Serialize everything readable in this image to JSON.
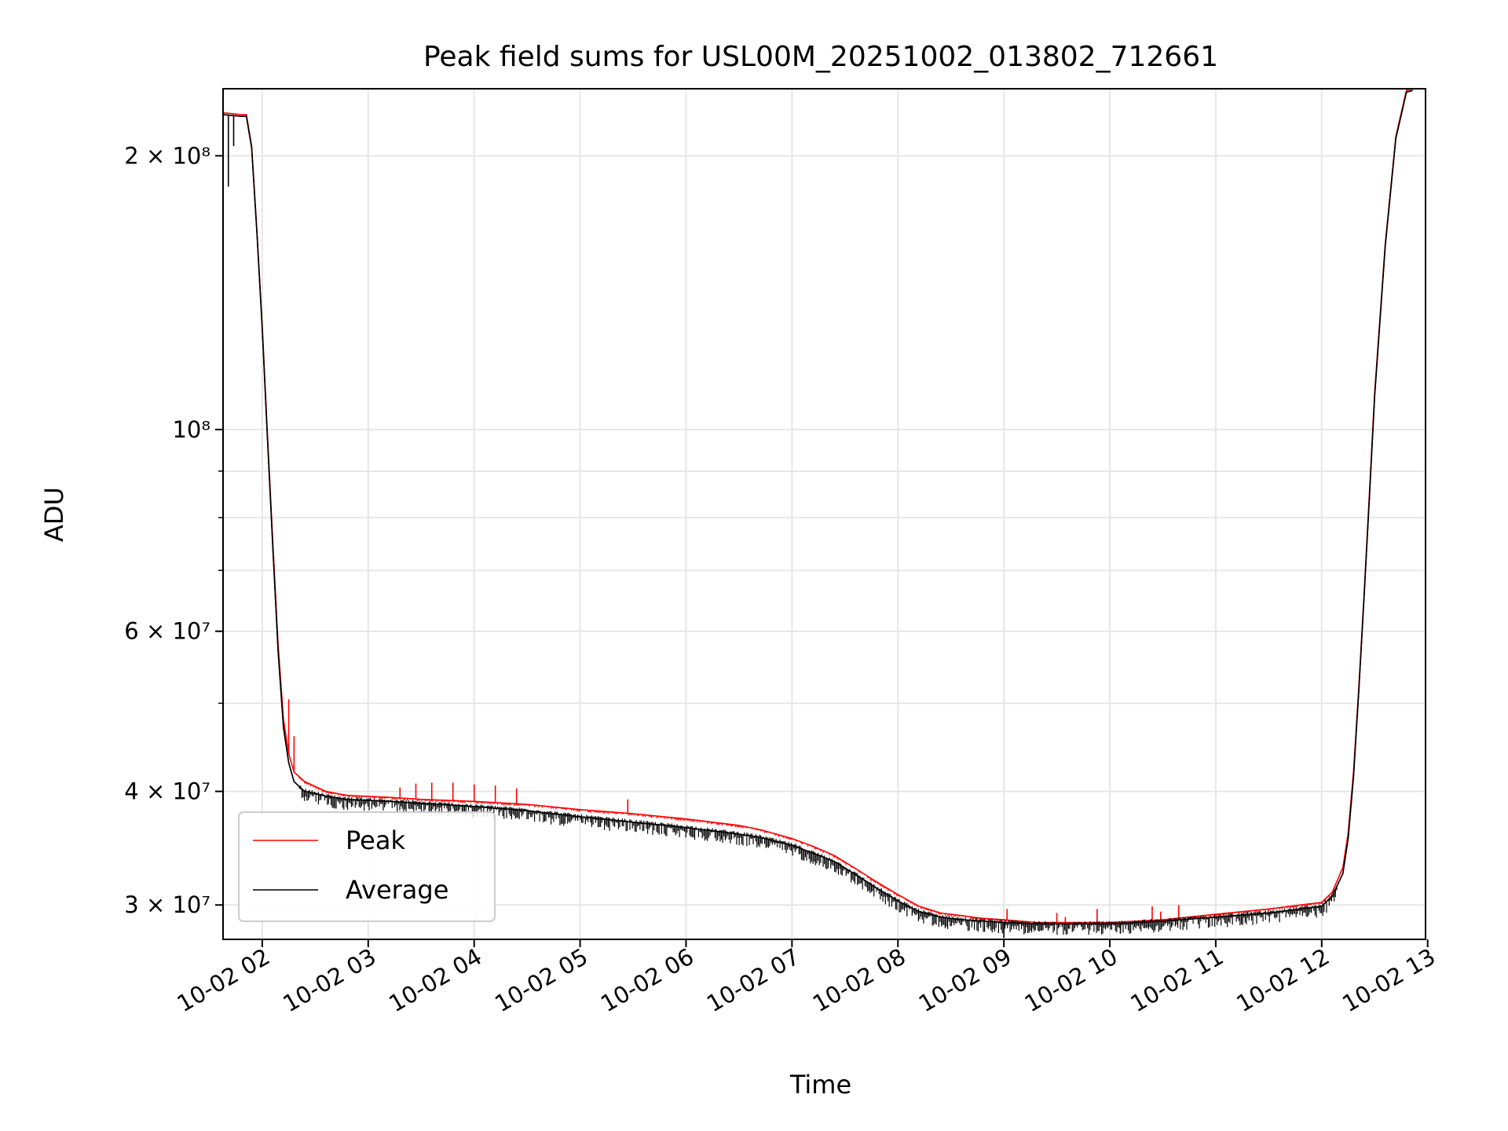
{
  "chart_data": {
    "type": "line",
    "title": "Peak field sums for USL00M_20251002_013802_712661",
    "xlabel": "Time",
    "ylabel": "ADU",
    "yscale": "log",
    "grid": true,
    "legend_position": "lower-left",
    "x_unit": "hours since 2025-10-02 00:00",
    "xlim": [
      1.63,
      12.98
    ],
    "ylim": [
      27500000,
      237000000
    ],
    "x_ticks": [
      {
        "value": 2,
        "label": "10-02 02"
      },
      {
        "value": 3,
        "label": "10-02 03"
      },
      {
        "value": 4,
        "label": "10-02 04"
      },
      {
        "value": 5,
        "label": "10-02 05"
      },
      {
        "value": 6,
        "label": "10-02 06"
      },
      {
        "value": 7,
        "label": "10-02 07"
      },
      {
        "value": 8,
        "label": "10-02 08"
      },
      {
        "value": 9,
        "label": "10-02 09"
      },
      {
        "value": 10,
        "label": "10-02 10"
      },
      {
        "value": 11,
        "label": "10-02 11"
      },
      {
        "value": 12,
        "label": "10-02 12"
      },
      {
        "value": 13,
        "label": "10-02 13"
      }
    ],
    "y_ticks_major": [
      {
        "value": 30000000,
        "label": "3 × 10⁷"
      },
      {
        "value": 40000000,
        "label": "4 × 10⁷"
      },
      {
        "value": 60000000,
        "label": "6 × 10⁷"
      },
      {
        "value": 100000000,
        "label": "10⁸"
      },
      {
        "value": 200000000,
        "label": "2 × 10⁸"
      }
    ],
    "y_ticks_minor": [
      50000000,
      70000000,
      80000000,
      90000000
    ],
    "series": [
      {
        "name": "Peak",
        "color": "#ff0000",
        "x": [
          1.63,
          1.8,
          1.85,
          1.9,
          1.95,
          2.0,
          2.05,
          2.1,
          2.15,
          2.2,
          2.25,
          2.3,
          2.35,
          2.4,
          2.5,
          2.6,
          2.8,
          3.0,
          3.2,
          3.5,
          4.0,
          4.5,
          5.0,
          5.5,
          6.0,
          6.5,
          6.7,
          7.0,
          7.2,
          7.4,
          7.6,
          7.8,
          8.0,
          8.2,
          8.4,
          8.6,
          8.8,
          9.0,
          9.3,
          9.6,
          10.0,
          10.5,
          11.0,
          11.5,
          12.0,
          12.1,
          12.2,
          12.25,
          12.3,
          12.35,
          12.4,
          12.45,
          12.5,
          12.6,
          12.7,
          12.8,
          12.86
        ],
        "y": [
          223000000,
          222000000,
          222000000,
          205000000,
          165000000,
          130000000,
          98000000,
          75000000,
          58000000,
          48000000,
          44000000,
          42000000,
          41500000,
          41000000,
          40500000,
          40000000,
          39600000,
          39500000,
          39400000,
          39200000,
          39000000,
          38700000,
          38200000,
          37800000,
          37300000,
          36700000,
          36300000,
          35500000,
          34800000,
          34000000,
          32900000,
          31800000,
          30800000,
          29900000,
          29400000,
          29200000,
          29000000,
          28900000,
          28700000,
          28700000,
          28700000,
          28900000,
          29300000,
          29700000,
          30200000,
          31000000,
          33000000,
          36000000,
          42000000,
          52000000,
          66000000,
          85000000,
          110000000,
          160000000,
          210000000,
          236000000,
          237000000
        ],
        "spikes": [
          {
            "x": 2.25,
            "y": 50500000
          },
          {
            "x": 2.3,
            "y": 46000000
          },
          {
            "x": 3.3,
            "y": 40400000
          },
          {
            "x": 3.45,
            "y": 40800000
          },
          {
            "x": 3.6,
            "y": 40900000
          },
          {
            "x": 3.8,
            "y": 40900000
          },
          {
            "x": 4.0,
            "y": 40700000
          },
          {
            "x": 4.2,
            "y": 40600000
          },
          {
            "x": 4.4,
            "y": 40300000
          },
          {
            "x": 5.45,
            "y": 39200000
          },
          {
            "x": 9.03,
            "y": 29700000
          },
          {
            "x": 9.5,
            "y": 29400000
          },
          {
            "x": 9.58,
            "y": 29100000
          },
          {
            "x": 9.88,
            "y": 29700000
          },
          {
            "x": 10.4,
            "y": 29900000
          },
          {
            "x": 10.48,
            "y": 29500000
          },
          {
            "x": 10.65,
            "y": 30000000
          },
          {
            "x": 11.7,
            "y": 29800000
          }
        ]
      },
      {
        "name": "Average",
        "color": "#000000",
        "x": [
          1.63,
          1.8,
          1.85,
          1.9,
          1.95,
          2.0,
          2.05,
          2.1,
          2.15,
          2.2,
          2.25,
          2.3,
          2.35,
          2.4,
          2.5,
          2.6,
          2.8,
          3.0,
          3.2,
          3.5,
          4.0,
          4.5,
          5.0,
          5.5,
          6.0,
          6.5,
          6.7,
          7.0,
          7.2,
          7.4,
          7.6,
          7.8,
          8.0,
          8.2,
          8.4,
          8.6,
          8.8,
          9.0,
          9.3,
          9.6,
          10.0,
          10.5,
          11.0,
          11.5,
          12.0,
          12.1,
          12.2,
          12.25,
          12.3,
          12.35,
          12.4,
          12.45,
          12.5,
          12.6,
          12.7,
          12.8,
          12.86
        ],
        "y": [
          222000000,
          221000000,
          221000000,
          204000000,
          164000000,
          129000000,
          97000000,
          74000000,
          57000000,
          47000000,
          43000000,
          41000000,
          40500000,
          40000000,
          39800000,
          39500000,
          39200000,
          39100000,
          39000000,
          38800000,
          38500000,
          38100000,
          37500000,
          37000000,
          36500000,
          35900000,
          35600000,
          34900000,
          34200000,
          33500000,
          32400000,
          31300000,
          30300000,
          29500000,
          29100000,
          28900000,
          28800000,
          28700000,
          28600000,
          28600000,
          28600000,
          28800000,
          29100000,
          29400000,
          29900000,
          30700000,
          32500000,
          35500000,
          41500000,
          51500000,
          65500000,
          84000000,
          109000000,
          159000000,
          209000000,
          235000000,
          236000000
        ],
        "dips": [
          {
            "x": 1.68,
            "y": 185000000
          },
          {
            "x": 1.73,
            "y": 205000000
          },
          {
            "x": 9.0,
            "y": 27600000
          },
          {
            "x": 10.1,
            "y": 27900000
          }
        ]
      }
    ]
  }
}
